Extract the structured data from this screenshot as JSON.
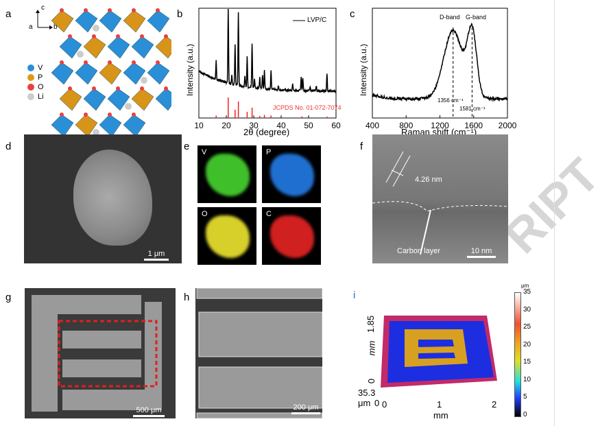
{
  "panels": {
    "a": "a",
    "b": "b",
    "c": "c",
    "d": "d",
    "e": "e",
    "f": "f",
    "g": "g",
    "h": "h",
    "i": "i"
  },
  "panel_a": {
    "axes": [
      "c",
      "a",
      "b"
    ],
    "legend": [
      {
        "label": "V",
        "color": "#2a8fd6"
      },
      {
        "label": "P",
        "color": "#e09a16"
      },
      {
        "label": "O",
        "color": "#e84040"
      },
      {
        "label": "Li",
        "color": "#cccccc"
      }
    ]
  },
  "chart_data": [
    {
      "type": "line",
      "title": "",
      "xlabel": "2θ (degree)",
      "ylabel": "Intensity (a.u.)",
      "xlim": [
        10,
        60
      ],
      "xticks": [
        10,
        20,
        30,
        40,
        50,
        60
      ],
      "legend": "LVP/C",
      "reference_label": "JCPDS No. 01-072-7074",
      "peaks": [
        [
          16.3,
          0.25
        ],
        [
          20.7,
          1.0
        ],
        [
          22,
          0.12
        ],
        [
          23.2,
          0.55
        ],
        [
          24.4,
          1.0
        ],
        [
          26.8,
          0.15
        ],
        [
          27.6,
          0.4
        ],
        [
          29.4,
          0.6
        ],
        [
          30.3,
          0.12
        ],
        [
          32.2,
          0.15
        ],
        [
          33.2,
          0.18
        ],
        [
          33.9,
          0.25
        ],
        [
          36.3,
          0.25
        ],
        [
          39,
          0.05
        ],
        [
          44.2,
          0.1
        ],
        [
          47.3,
          0.18
        ],
        [
          47.9,
          0.18
        ],
        [
          50.5,
          0.06
        ],
        [
          52.8,
          0.07
        ],
        [
          56.7,
          0.25
        ]
      ],
      "ref_peaks": [
        [
          16.3,
          0.12
        ],
        [
          20.7,
          1.0
        ],
        [
          23.2,
          0.4
        ],
        [
          24.4,
          0.8
        ],
        [
          27.6,
          0.3
        ],
        [
          29.4,
          0.5
        ],
        [
          32.2,
          0.1
        ],
        [
          33.9,
          0.15
        ],
        [
          36.3,
          0.12
        ],
        [
          47.6,
          0.08
        ],
        [
          56.7,
          0.07
        ]
      ]
    },
    {
      "type": "line",
      "xlabel": "Raman shift (cm⁻¹)",
      "ylabel": "Intensity (a.u.)",
      "xlim": [
        400,
        2000
      ],
      "xticks": [
        400,
        800,
        1200,
        1600,
        2000
      ],
      "annotations": {
        "d_band": "D-band",
        "g_band": "G-band",
        "d_pos": "1356 cm⁻¹",
        "g_pos": "1581 cm⁻¹"
      },
      "d_center": 1356,
      "g_center": 1581
    }
  ],
  "panel_d": {
    "scale": "1 μm"
  },
  "panel_e": {
    "tiles": [
      {
        "label": "V",
        "color": "#3fbf2a"
      },
      {
        "label": "P",
        "color": "#1f6fd0"
      },
      {
        "label": "O",
        "color": "#d8d02a"
      },
      {
        "label": "C",
        "color": "#d02020"
      }
    ]
  },
  "panel_f": {
    "spacing": "4.26 nm",
    "layer": "Carbon layer",
    "scale": "10 nm"
  },
  "panel_g": {
    "scale": "500 μm"
  },
  "panel_h": {
    "scale": "200 μm"
  },
  "panel_i": {
    "y_top": "1.85",
    "y_unit": "mm",
    "z_top": "0",
    "z_val": "35.3",
    "z_unit": "μm",
    "x_origin": "0",
    "x0": "0",
    "x1": "1",
    "x2": "2",
    "x_unit": "mm",
    "cb_unit": "μm",
    "cb_ticks": [
      "35",
      "30",
      "25",
      "20",
      "15",
      "10",
      "5",
      "0"
    ]
  },
  "watermark": "RIPT"
}
